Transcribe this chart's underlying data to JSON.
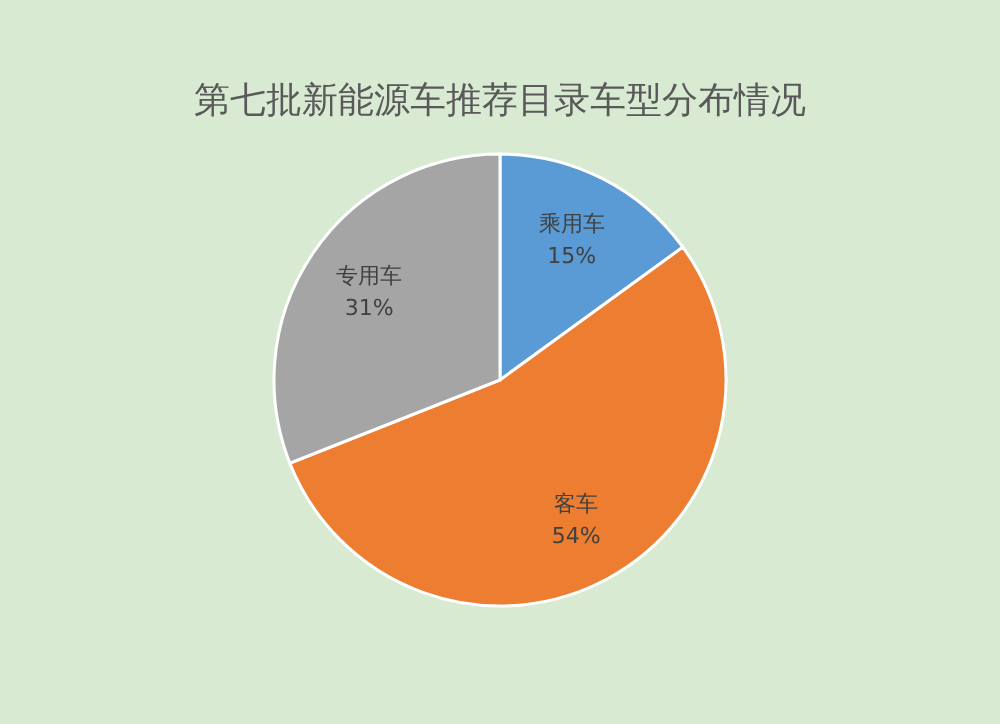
{
  "chart_data": {
    "type": "pie",
    "title": "第七批新能源车推荐目录车型分布情况",
    "categories": [
      "乘用车",
      "客车",
      "专用车"
    ],
    "values": [
      15,
      54,
      31
    ],
    "value_labels": [
      "15%",
      "54%",
      "31%"
    ],
    "colors": [
      "#5b9bd5",
      "#ed7d31",
      "#a5a5a5"
    ]
  }
}
